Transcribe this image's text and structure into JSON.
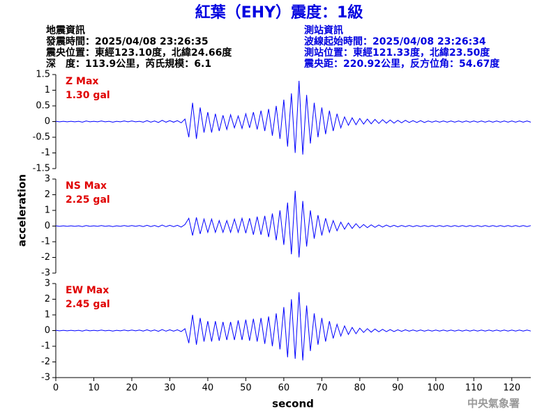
{
  "header": {
    "left": [
      "地震資訊",
      "發震時間：2025/04/08 23:26:35",
      "震央位置：東經123.10度，北緯24.66度",
      "深　度：113.9公里，芮氏規模：6.1"
    ],
    "right": [
      "測站資訊",
      "波線起始時間：2025/04/08 23:26:34",
      "測站位置：東經121.33度，北緯23.50度",
      "震央距：220.92公里，反方位角：54.67度"
    ],
    "watermark": "中央氣象署"
  },
  "chart_data": {
    "type": "line",
    "title": "紅葉（EHY）震度：1級",
    "xlabel": "second",
    "ylabel": "acceleration",
    "xlim": [
      0,
      125
    ],
    "xticks": [
      0,
      10,
      20,
      30,
      40,
      50,
      60,
      70,
      80,
      90,
      100,
      110,
      120
    ],
    "x": [
      0,
      1,
      2,
      3,
      4,
      5,
      6,
      7,
      8,
      9,
      10,
      11,
      12,
      13,
      14,
      15,
      16,
      17,
      18,
      19,
      20,
      21,
      22,
      23,
      24,
      25,
      26,
      27,
      28,
      29,
      30,
      31,
      32,
      33,
      34,
      35,
      36,
      37,
      38,
      39,
      40,
      41,
      42,
      43,
      44,
      45,
      46,
      47,
      48,
      49,
      50,
      51,
      52,
      53,
      54,
      55,
      56,
      57,
      58,
      59,
      60,
      61,
      62,
      63,
      64,
      65,
      66,
      67,
      68,
      69,
      70,
      71,
      72,
      73,
      74,
      75,
      76,
      77,
      78,
      79,
      80,
      81,
      82,
      83,
      84,
      85,
      86,
      87,
      88,
      89,
      90,
      91,
      92,
      93,
      94,
      95,
      96,
      97,
      98,
      99,
      100,
      101,
      102,
      103,
      104,
      105,
      106,
      107,
      108,
      109,
      110,
      111,
      112,
      113,
      114,
      115,
      116,
      117,
      118,
      119,
      120,
      121,
      122,
      123,
      124,
      125
    ],
    "panels": [
      {
        "name": "Z Max",
        "annotation": "1.30 gal",
        "color": "#0000ff",
        "label_color": "#e00000",
        "ylim": [
          -1.5,
          1.5
        ],
        "yticks": [
          1.5,
          1,
          0.5,
          0,
          -0.5,
          -1,
          -1.5
        ],
        "values": [
          0.01,
          -0.01,
          0.01,
          -0.01,
          0.01,
          -0.01,
          0.01,
          -0.02,
          0.02,
          -0.01,
          0.01,
          -0.01,
          0.02,
          -0.01,
          0.01,
          -0.02,
          0.01,
          -0.01,
          0.02,
          -0.01,
          0.02,
          -0.01,
          0.01,
          -0.02,
          0.03,
          -0.02,
          0.02,
          -0.03,
          0.04,
          -0.02,
          0.03,
          -0.02,
          0.03,
          -0.04,
          0.08,
          -0.5,
          0.6,
          -0.55,
          0.45,
          -0.35,
          0.3,
          -0.35,
          0.25,
          -0.3,
          0.2,
          -0.25,
          0.22,
          -0.2,
          0.18,
          -0.22,
          0.25,
          -0.2,
          0.3,
          -0.25,
          0.35,
          -0.3,
          0.4,
          -0.45,
          0.5,
          -0.55,
          0.7,
          -0.8,
          0.9,
          -1.0,
          1.3,
          -1.05,
          0.85,
          -0.7,
          0.6,
          -0.5,
          0.45,
          -0.4,
          0.35,
          -0.3,
          0.25,
          -0.2,
          0.15,
          -0.12,
          0.12,
          -0.1,
          0.1,
          -0.08,
          0.08,
          -0.07,
          0.07,
          -0.06,
          0.06,
          -0.05,
          0.05,
          -0.05,
          0.04,
          -0.04,
          0.04,
          -0.03,
          0.03,
          -0.03,
          0.03,
          -0.03,
          0.02,
          -0.02,
          0.02,
          -0.02,
          0.02,
          -0.02,
          0.02,
          -0.02,
          0.02,
          -0.02,
          0.02,
          -0.02,
          0.02,
          -0.02,
          0.02,
          -0.02,
          0.02,
          -0.02,
          0.02,
          -0.02,
          0.02,
          -0.02,
          0.02,
          -0.02,
          0.02,
          -0.02,
          0.02,
          -0.02
        ]
      },
      {
        "name": "NS Max",
        "annotation": "2.25 gal",
        "color": "#0000ff",
        "label_color": "#e00000",
        "ylim": [
          -3,
          3
        ],
        "yticks": [
          3,
          2,
          1,
          0,
          -1,
          -2,
          -3
        ],
        "values": [
          0.02,
          -0.02,
          0.02,
          -0.02,
          0.02,
          -0.02,
          0.02,
          -0.03,
          0.03,
          -0.02,
          0.02,
          -0.02,
          0.03,
          -0.02,
          0.02,
          -0.03,
          0.02,
          -0.02,
          0.03,
          -0.02,
          0.03,
          -0.02,
          0.03,
          -0.03,
          0.05,
          -0.03,
          0.04,
          -0.05,
          0.06,
          -0.04,
          0.05,
          -0.04,
          0.05,
          -0.06,
          0.1,
          0.5,
          -0.6,
          0.55,
          -0.5,
          0.45,
          -0.4,
          0.45,
          -0.4,
          0.35,
          -0.4,
          0.35,
          -0.4,
          0.45,
          -0.4,
          0.5,
          -0.45,
          0.5,
          -0.55,
          0.6,
          -0.55,
          0.65,
          -0.7,
          0.8,
          -0.9,
          1.0,
          -1.2,
          1.5,
          -1.8,
          2.25,
          -2.0,
          1.6,
          -1.3,
          1.0,
          -0.8,
          0.7,
          -0.6,
          0.5,
          -0.4,
          0.35,
          -0.3,
          0.25,
          -0.2,
          0.2,
          -0.15,
          0.15,
          -0.12,
          0.1,
          -0.1,
          0.08,
          -0.08,
          0.07,
          -0.06,
          0.06,
          -0.05,
          0.05,
          -0.05,
          0.04,
          -0.04,
          0.04,
          -0.04,
          0.03,
          -0.03,
          0.03,
          -0.03,
          0.03,
          -0.03,
          0.03,
          -0.03,
          0.03,
          -0.03,
          0.03,
          -0.03,
          0.03,
          -0.03,
          0.03,
          -0.03,
          0.03,
          -0.03,
          0.03,
          -0.03,
          0.03,
          -0.03,
          0.03,
          -0.03,
          0.03,
          -0.03,
          0.03,
          -0.03,
          0.03,
          -0.03,
          0.03
        ]
      },
      {
        "name": "EW Max",
        "annotation": "2.45 gal",
        "color": "#0000ff",
        "label_color": "#e00000",
        "ylim": [
          -3,
          3
        ],
        "yticks": [
          3,
          2,
          1,
          0,
          -1,
          -2,
          -3
        ],
        "values": [
          0.02,
          -0.02,
          0.02,
          -0.02,
          0.02,
          -0.02,
          0.02,
          -0.03,
          0.03,
          -0.02,
          0.02,
          -0.02,
          0.03,
          -0.02,
          0.02,
          -0.03,
          0.02,
          -0.02,
          0.03,
          -0.02,
          0.03,
          -0.02,
          0.03,
          -0.03,
          0.05,
          -0.03,
          0.04,
          -0.05,
          0.06,
          -0.04,
          0.05,
          -0.04,
          0.05,
          -0.06,
          0.12,
          -0.8,
          1.0,
          -0.9,
          0.8,
          -0.7,
          0.6,
          -0.7,
          0.6,
          -0.65,
          0.55,
          -0.6,
          0.55,
          -0.6,
          0.65,
          -0.6,
          0.7,
          -0.65,
          0.75,
          -0.7,
          0.8,
          -0.85,
          0.9,
          -1.0,
          1.1,
          -1.2,
          1.5,
          -1.7,
          2.0,
          -1.8,
          2.45,
          -1.9,
          1.6,
          -1.3,
          1.1,
          -0.9,
          0.8,
          -0.7,
          0.6,
          -0.5,
          0.4,
          -0.35,
          0.3,
          -0.25,
          0.2,
          -0.2,
          0.15,
          -0.12,
          0.12,
          -0.1,
          0.1,
          -0.08,
          0.08,
          -0.07,
          0.06,
          -0.06,
          0.05,
          -0.05,
          0.05,
          -0.04,
          0.04,
          -0.04,
          0.04,
          -0.04,
          0.03,
          -0.03,
          0.03,
          -0.03,
          0.03,
          -0.03,
          0.03,
          -0.03,
          0.03,
          -0.03,
          0.03,
          -0.03,
          0.03,
          -0.03,
          0.03,
          -0.03,
          0.03,
          -0.03,
          0.03,
          -0.03,
          0.03,
          -0.03,
          0.03,
          -0.03,
          0.03,
          -0.03,
          0.03,
          -0.03
        ]
      }
    ]
  }
}
